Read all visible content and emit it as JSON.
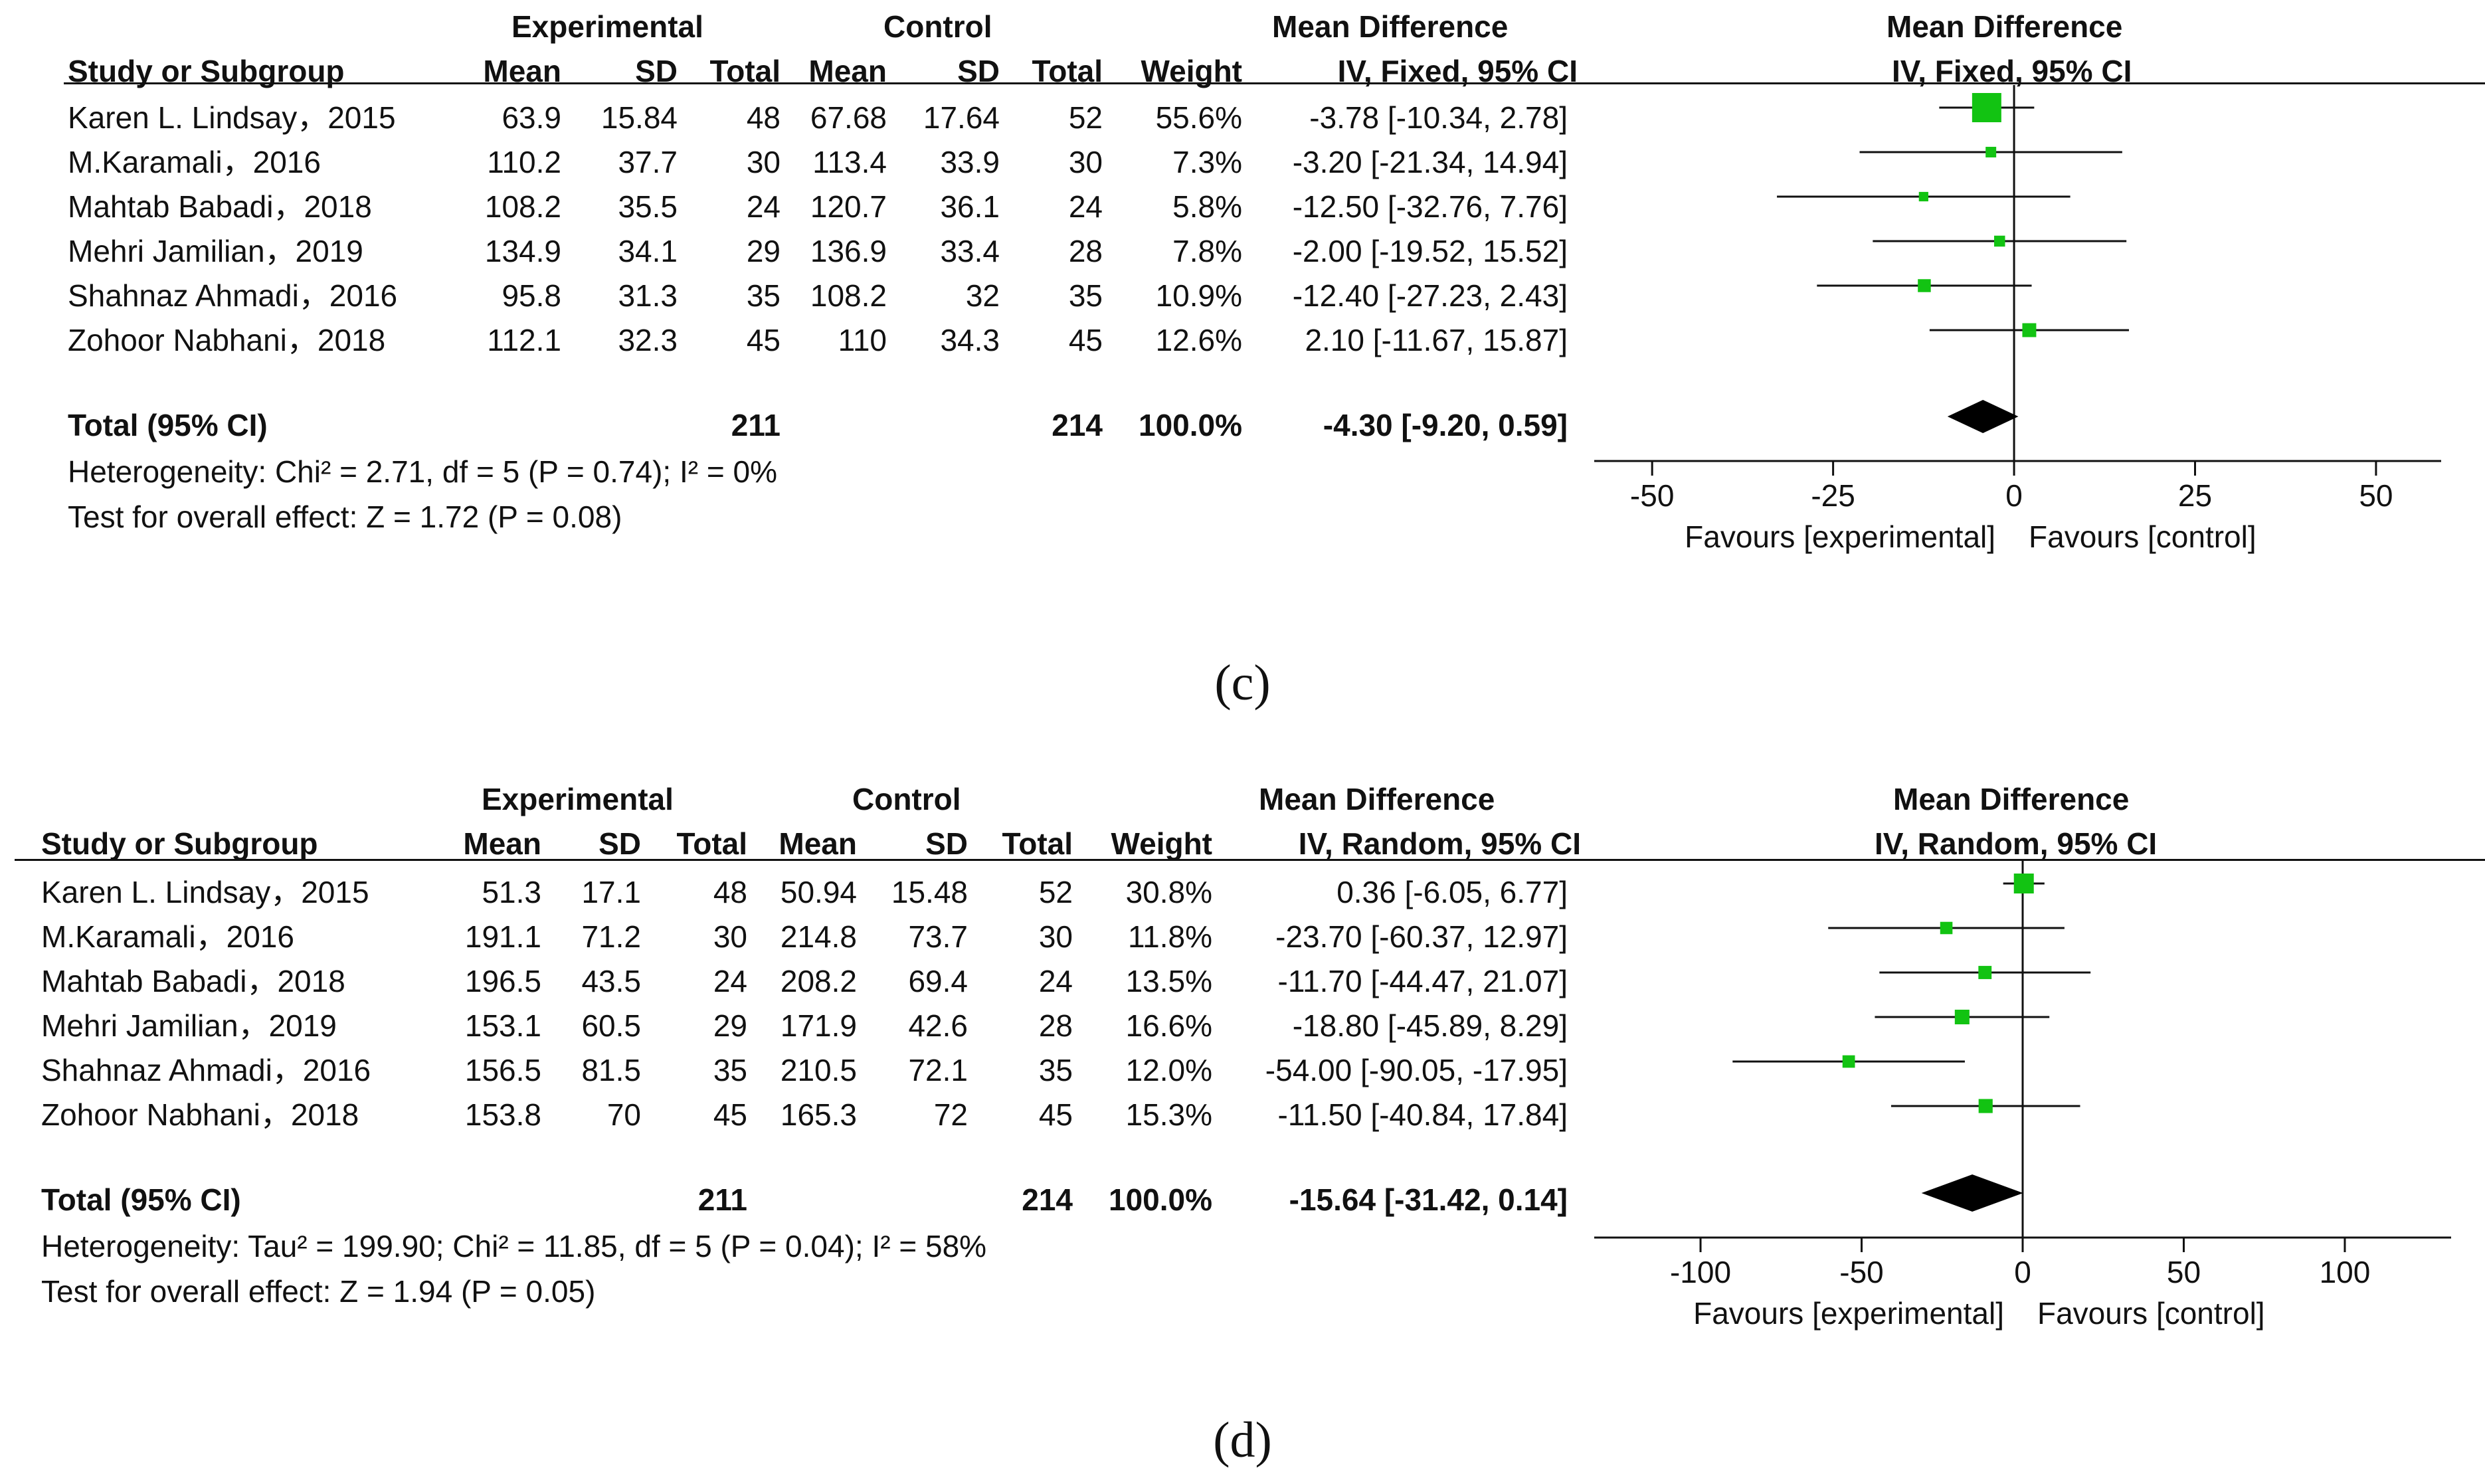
{
  "chart_data": [
    {
      "type": "forest",
      "panel_label": "(c)",
      "header": {
        "experimental": "Experimental",
        "control": "Control",
        "mean_difference": "Mean Difference",
        "study_col": "Study or Subgroup",
        "mean": "Mean",
        "sd": "SD",
        "total": "Total",
        "weight": "Weight",
        "method": "IV, Fixed, 95% CI",
        "plot_title": "Mean Difference",
        "plot_method": "IV, Fixed, 95% CI"
      },
      "studies": [
        {
          "name": "Karen L. Lindsay，2015",
          "exp_mean": "63.9",
          "exp_sd": "15.84",
          "exp_total": "48",
          "ctl_mean": "67.68",
          "ctl_sd": "17.64",
          "ctl_total": "52",
          "weight": "55.6%",
          "ci_text": "-3.78 [-10.34, 2.78]",
          "md": -3.78,
          "lower": -10.34,
          "upper": 2.78,
          "w": 55.6
        },
        {
          "name": "M.Karamali，2016",
          "exp_mean": "110.2",
          "exp_sd": "37.7",
          "exp_total": "30",
          "ctl_mean": "113.4",
          "ctl_sd": "33.9",
          "ctl_total": "30",
          "weight": "7.3%",
          "ci_text": "-3.20 [-21.34, 14.94]",
          "md": -3.2,
          "lower": -21.34,
          "upper": 14.94,
          "w": 7.3
        },
        {
          "name": "Mahtab Babadi，2018",
          "exp_mean": "108.2",
          "exp_sd": "35.5",
          "exp_total": "24",
          "ctl_mean": "120.7",
          "ctl_sd": "36.1",
          "ctl_total": "24",
          "weight": "5.8%",
          "ci_text": "-12.50 [-32.76, 7.76]",
          "md": -12.5,
          "lower": -32.76,
          "upper": 7.76,
          "w": 5.8
        },
        {
          "name": "Mehri Jamilian，2019",
          "exp_mean": "134.9",
          "exp_sd": "34.1",
          "exp_total": "29",
          "ctl_mean": "136.9",
          "ctl_sd": "33.4",
          "ctl_total": "28",
          "weight": "7.8%",
          "ci_text": "-2.00 [-19.52, 15.52]",
          "md": -2.0,
          "lower": -19.52,
          "upper": 15.52,
          "w": 7.8
        },
        {
          "name": "Shahnaz Ahmadi，2016",
          "exp_mean": "95.8",
          "exp_sd": "31.3",
          "exp_total": "35",
          "ctl_mean": "108.2",
          "ctl_sd": "32",
          "ctl_total": "35",
          "weight": "10.9%",
          "ci_text": "-12.40 [-27.23, 2.43]",
          "md": -12.4,
          "lower": -27.23,
          "upper": 2.43,
          "w": 10.9
        },
        {
          "name": "Zohoor Nabhani，2018",
          "exp_mean": "112.1",
          "exp_sd": "32.3",
          "exp_total": "45",
          "ctl_mean": "110",
          "ctl_sd": "34.3",
          "ctl_total": "45",
          "weight": "12.6%",
          "ci_text": "2.10 [-11.67, 15.87]",
          "md": 2.1,
          "lower": -11.67,
          "upper": 15.87,
          "w": 12.6
        }
      ],
      "total": {
        "label": "Total (95% CI)",
        "exp_total": "211",
        "ctl_total": "214",
        "weight": "100.0%",
        "ci_text": "-4.30 [-9.20, 0.59]",
        "md": -4.3,
        "lower": -9.2,
        "upper": 0.59
      },
      "heterogeneity": "Heterogeneity: Chi² = 2.71, df = 5 (P = 0.74); I² = 0%",
      "overall_effect": "Test for overall effect: Z = 1.72 (P = 0.08)",
      "axis": {
        "range": [
          -50,
          50
        ],
        "display_range": [
          -58,
          59
        ],
        "ticks": [
          -50,
          -25,
          0,
          25,
          50
        ],
        "tick_labels": [
          "-50",
          "-25",
          "0",
          "25",
          "50"
        ]
      },
      "favours_left": "Favours [experimental]",
      "favours_right": "Favours [control]"
    },
    {
      "type": "forest",
      "panel_label": "(d)",
      "header": {
        "experimental": "Experimental",
        "control": "Control",
        "mean_difference": "Mean Difference",
        "study_col": "Study or Subgroup",
        "mean": "Mean",
        "sd": "SD",
        "total": "Total",
        "weight": "Weight",
        "method": "IV, Random, 95% CI",
        "plot_title": "Mean Difference",
        "plot_method": "IV, Random, 95% CI"
      },
      "studies": [
        {
          "name": "Karen L. Lindsay，2015",
          "exp_mean": "51.3",
          "exp_sd": "17.1",
          "exp_total": "48",
          "ctl_mean": "50.94",
          "ctl_sd": "15.48",
          "ctl_total": "52",
          "weight": "30.8%",
          "ci_text": "0.36 [-6.05, 6.77]",
          "md": 0.36,
          "lower": -6.05,
          "upper": 6.77,
          "w": 30.8
        },
        {
          "name": "M.Karamali，2016",
          "exp_mean": "191.1",
          "exp_sd": "71.2",
          "exp_total": "30",
          "ctl_mean": "214.8",
          "ctl_sd": "73.7",
          "ctl_total": "30",
          "weight": "11.8%",
          "ci_text": "-23.70 [-60.37, 12.97]",
          "md": -23.7,
          "lower": -60.37,
          "upper": 12.97,
          "w": 11.8
        },
        {
          "name": "Mahtab Babadi，2018",
          "exp_mean": "196.5",
          "exp_sd": "43.5",
          "exp_total": "24",
          "ctl_mean": "208.2",
          "ctl_sd": "69.4",
          "ctl_total": "24",
          "weight": "13.5%",
          "ci_text": "-11.70 [-44.47, 21.07]",
          "md": -11.7,
          "lower": -44.47,
          "upper": 21.07,
          "w": 13.5
        },
        {
          "name": "Mehri Jamilian，2019",
          "exp_mean": "153.1",
          "exp_sd": "60.5",
          "exp_total": "29",
          "ctl_mean": "171.9",
          "ctl_sd": "42.6",
          "ctl_total": "28",
          "weight": "16.6%",
          "ci_text": "-18.80 [-45.89, 8.29]",
          "md": -18.8,
          "lower": -45.89,
          "upper": 8.29,
          "w": 16.6
        },
        {
          "name": "Shahnaz Ahmadi，2016",
          "exp_mean": "156.5",
          "exp_sd": "81.5",
          "exp_total": "35",
          "ctl_mean": "210.5",
          "ctl_sd": "72.1",
          "ctl_total": "35",
          "weight": "12.0%",
          "ci_text": "-54.00 [-90.05, -17.95]",
          "md": -54.0,
          "lower": -90.05,
          "upper": -17.95,
          "w": 12.0
        },
        {
          "name": "Zohoor Nabhani，2018",
          "exp_mean": "153.8",
          "exp_sd": "70",
          "exp_total": "45",
          "ctl_mean": "165.3",
          "ctl_sd": "72",
          "ctl_total": "45",
          "weight": "15.3%",
          "ci_text": "-11.50 [-40.84, 17.84]",
          "md": -11.5,
          "lower": -40.84,
          "upper": 17.84,
          "w": 15.3
        }
      ],
      "total": {
        "label": "Total (95% CI)",
        "exp_total": "211",
        "ctl_total": "214",
        "weight": "100.0%",
        "ci_text": "-15.64 [-31.42, 0.14]",
        "md": -15.64,
        "lower": -31.42,
        "upper": 0.14
      },
      "heterogeneity": "Heterogeneity: Tau² = 199.90; Chi² = 11.85, df = 5 (P = 0.04); I² = 58%",
      "overall_effect": "Test for overall effect: Z = 1.94 (P = 0.05)",
      "axis": {
        "range": [
          -100,
          100
        ],
        "display_range": [
          -133,
          133
        ],
        "ticks": [
          -100,
          -50,
          0,
          50,
          100
        ],
        "tick_labels": [
          "-100",
          "-50",
          "0",
          "50",
          "100"
        ]
      },
      "favours_left": "Favours [experimental]",
      "favours_right": "Favours [control]"
    }
  ],
  "colors": {
    "marker": "#12c312",
    "diamond": "#000000",
    "line": "#111111"
  }
}
